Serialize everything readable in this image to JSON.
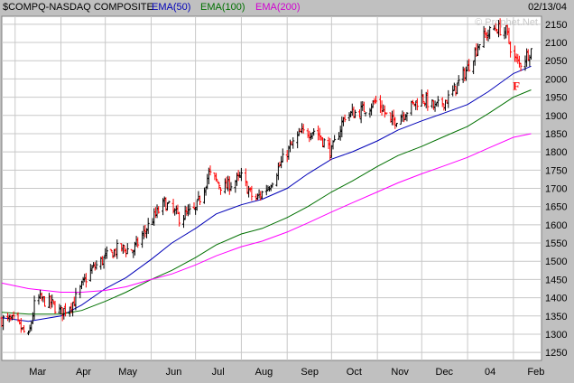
{
  "header": {
    "symbol_label": "$COMPQ-NASDAQ COMPOSITE",
    "ema50_label": "EMA(50)",
    "ema100_label": "EMA(100)",
    "ema200_label": "EMA(200)",
    "date": "02/13/04"
  },
  "watermark": "© Prophet.Net",
  "colors": {
    "background": "#ffffff",
    "frame": "#c0c0c0",
    "grid": "#c8c8c8",
    "up_bar": "#000000",
    "down_bar": "#ff0000",
    "ema50": "#0000b8",
    "ema100": "#007000",
    "ema200": "#ff00ff",
    "annotation": "#ff0000"
  },
  "chart_data": {
    "type": "line",
    "title": "$COMPQ-NASDAQ COMPOSITE",
    "x_tick_labels": [
      "Mar",
      "Apr",
      "May",
      "Jun",
      "Jul",
      "Aug",
      "Sep",
      "Oct",
      "Nov",
      "Dec",
      "04",
      "Feb"
    ],
    "y_tick_labels": [
      1250,
      1300,
      1350,
      1400,
      1450,
      1500,
      1550,
      1600,
      1650,
      1700,
      1750,
      1800,
      1850,
      1900,
      1950,
      2000,
      2050,
      2100,
      2150
    ],
    "ylim": [
      1228,
      2172
    ],
    "y_axis_side": "right",
    "grid": true,
    "price_series": {
      "name": "$COMPQ-NASDAQ COMPOSITE",
      "representation": "daily OHLC bars (black up, red down), approximate closes shown",
      "x": [
        "2003-02-20",
        "2003-03-01",
        "2003-03-10",
        "2003-03-15",
        "2003-03-25",
        "2003-04-01",
        "2003-04-10",
        "2003-04-20",
        "2003-05-01",
        "2003-05-10",
        "2003-05-20",
        "2003-06-01",
        "2003-06-10",
        "2003-06-20",
        "2003-07-01",
        "2003-07-10",
        "2003-07-20",
        "2003-08-01",
        "2003-08-10",
        "2003-08-20",
        "2003-09-01",
        "2003-09-10",
        "2003-09-20",
        "2003-10-01",
        "2003-10-10",
        "2003-10-20",
        "2003-11-01",
        "2003-11-10",
        "2003-11-20",
        "2003-12-01",
        "2003-12-10",
        "2003-12-20",
        "2004-01-01",
        "2004-01-10",
        "2004-01-20",
        "2004-01-27",
        "2004-02-01",
        "2004-02-05",
        "2004-02-13"
      ],
      "values": [
        1340,
        1335,
        1290,
        1400,
        1385,
        1360,
        1390,
        1470,
        1510,
        1535,
        1530,
        1610,
        1660,
        1620,
        1640,
        1740,
        1700,
        1730,
        1665,
        1710,
        1800,
        1850,
        1860,
        1800,
        1900,
        1910,
        1940,
        1880,
        1910,
        1950,
        1920,
        1950,
        2030,
        2110,
        2140,
        2130,
        2060,
        2040,
        2080
      ]
    },
    "series": [
      {
        "name": "EMA(50)",
        "x": [
          "2003-02-20",
          "2003-03-10",
          "2003-04-01",
          "2003-04-15",
          "2003-05-01",
          "2003-05-15",
          "2003-06-01",
          "2003-06-15",
          "2003-07-01",
          "2003-07-15",
          "2003-08-01",
          "2003-08-15",
          "2003-09-01",
          "2003-09-15",
          "2003-10-01",
          "2003-10-15",
          "2003-11-01",
          "2003-11-15",
          "2003-12-01",
          "2003-12-15",
          "2004-01-01",
          "2004-01-15",
          "2004-02-01",
          "2004-02-13"
        ],
        "values": [
          1345,
          1335,
          1350,
          1380,
          1425,
          1455,
          1505,
          1550,
          1590,
          1630,
          1655,
          1670,
          1700,
          1740,
          1780,
          1800,
          1830,
          1860,
          1885,
          1905,
          1930,
          1965,
          2015,
          2035
        ]
      },
      {
        "name": "EMA(100)",
        "x": [
          "2003-02-20",
          "2003-03-10",
          "2003-04-01",
          "2003-04-15",
          "2003-05-01",
          "2003-05-15",
          "2003-06-01",
          "2003-06-15",
          "2003-07-01",
          "2003-07-15",
          "2003-08-01",
          "2003-08-15",
          "2003-09-01",
          "2003-09-15",
          "2003-10-01",
          "2003-10-15",
          "2003-11-01",
          "2003-11-15",
          "2003-12-01",
          "2003-12-15",
          "2004-01-01",
          "2004-01-15",
          "2004-02-01",
          "2004-02-13"
        ],
        "values": [
          1360,
          1355,
          1355,
          1365,
          1390,
          1415,
          1450,
          1475,
          1510,
          1545,
          1575,
          1590,
          1620,
          1650,
          1690,
          1720,
          1760,
          1790,
          1815,
          1840,
          1870,
          1905,
          1950,
          1970
        ]
      },
      {
        "name": "EMA(200)",
        "x": [
          "2003-02-20",
          "2003-03-10",
          "2003-04-01",
          "2003-04-15",
          "2003-05-01",
          "2003-05-15",
          "2003-06-01",
          "2003-06-15",
          "2003-07-01",
          "2003-07-15",
          "2003-08-01",
          "2003-08-15",
          "2003-09-01",
          "2003-09-15",
          "2003-10-01",
          "2003-10-15",
          "2003-11-01",
          "2003-11-15",
          "2003-12-01",
          "2003-12-15",
          "2004-01-01",
          "2004-01-15",
          "2004-02-01",
          "2004-02-13"
        ],
        "values": [
          1440,
          1425,
          1415,
          1415,
          1420,
          1430,
          1450,
          1465,
          1490,
          1515,
          1540,
          1555,
          1580,
          1605,
          1635,
          1660,
          1690,
          1715,
          1740,
          1760,
          1785,
          1810,
          1840,
          1850
        ]
      }
    ],
    "annotations": [
      {
        "text": "F",
        "x": "2004-02-03",
        "y": 1990
      }
    ]
  }
}
